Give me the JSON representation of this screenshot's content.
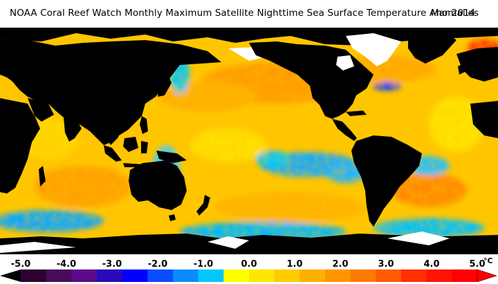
{
  "header": {
    "title": "NOAA Coral Reef Watch Monthly Maximum Satellite Nighttime Sea Surface Temperature Anomalies",
    "date": "Mar 2014"
  },
  "legend": {
    "ticks": [
      "-5.0",
      "-4.0",
      "-3.0",
      "-2.0",
      "-1.0",
      "0.0",
      "1.0",
      "2.0",
      "3.0",
      "4.0",
      "5.0"
    ],
    "unit": "°C",
    "colors": [
      "#2e0030",
      "#4a0a5a",
      "#5a0a8a",
      "#2a0ab8",
      "#0000ff",
      "#0a4cff",
      "#0a8cff",
      "#00c8ff",
      "#ffff00",
      "#ffe600",
      "#ffcc00",
      "#ffb000",
      "#ff9600",
      "#ff7a00",
      "#ff5a00",
      "#ff3000",
      "#ff1400",
      "#ff0000"
    ]
  },
  "map": {
    "land_color": "#000000",
    "ice_color": "#ffffff",
    "ocean_base_color": "#ffc400"
  }
}
